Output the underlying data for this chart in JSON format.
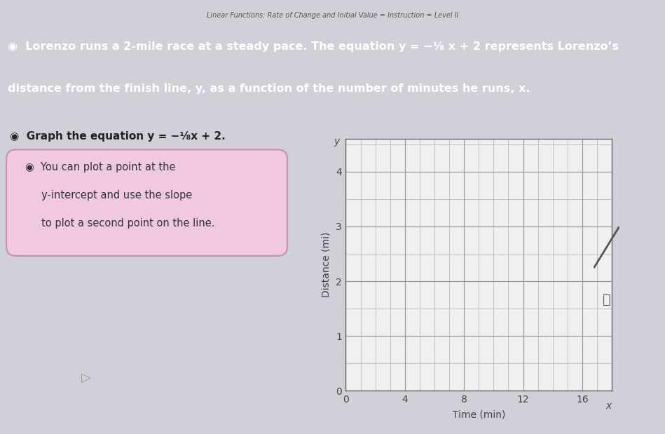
{
  "title": "Linear Functions: Rate of Change and Initial Value = Instruction = Level II",
  "header_line1": "◉  Lorenzo runs a 2-mile race at a steady pace. The equation y = −¹⁄₈ x + 2 represents Lorenzo’s",
  "header_line2": "distance from the finish line, y, as a function of the number of minutes he runs, x.",
  "header_bg": "#2e4da3",
  "header_text_color": "#ffffff",
  "title_color": "#aaaaaa",
  "page_bg": "#d0d0d8",
  "graph_panel_bg": "#c8c8d0",
  "graph_bg": "#f0f0f0",
  "graph_border": "#888888",
  "grid_color": "#bbbbbb",
  "grid_major_color": "#999999",
  "xlabel": "Time (min)",
  "ylabel": "Distance (mi)",
  "xlim": [
    0,
    18
  ],
  "ylim": [
    0,
    4.6
  ],
  "xticks": [
    0,
    4,
    8,
    12,
    16
  ],
  "yticks": [
    0,
    1,
    2,
    3,
    4
  ],
  "instruction_text": "◉  Graph the equation y = −¹⁄₈x + 2.",
  "hint_line1": "◉  You can plot a point at the",
  "hint_line2": "     y-intercept and use the slope",
  "hint_line3": "     to plot a second point on the line.",
  "hint_bg": "#f0c8e0",
  "hint_border": "#c890b0",
  "cursor_char": "▷",
  "x_label_on_axis": "x",
  "y_label_on_axis": "y"
}
